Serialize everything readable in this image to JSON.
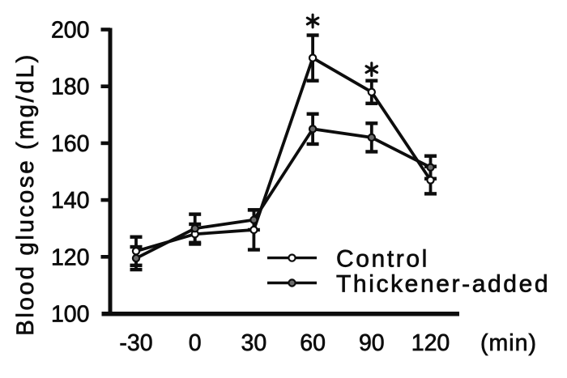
{
  "chart_data": {
    "type": "line",
    "title": "",
    "ylabel": "Blood glucose (mg/dL)",
    "xlabel": "(min)",
    "x": [
      -30,
      0,
      30,
      60,
      90,
      120
    ],
    "xtick_labels": [
      "-30",
      "0",
      "30",
      "60",
      "90",
      "120"
    ],
    "yticks": [
      100,
      120,
      140,
      160,
      180,
      200
    ],
    "ylim": [
      100,
      200
    ],
    "grid": false,
    "legend_position": "inside-right",
    "series": [
      {
        "name": "Control",
        "marker": "open-circle",
        "marker_fill": "#ffffff",
        "line_color": "#0d0d0d",
        "values": [
          122,
          128,
          129.5,
          190,
          178,
          147
        ],
        "errors": [
          5,
          3.5,
          7,
          8,
          4,
          4.8
        ]
      },
      {
        "name": "Thickener-added",
        "marker": "filled-circle",
        "marker_fill": "#6b6b6b",
        "line_color": "#0d0d0d",
        "values": [
          119.5,
          130,
          133,
          165,
          162,
          151.5
        ],
        "errors": [
          4,
          5,
          3.5,
          5.3,
          5,
          4
        ]
      }
    ],
    "annotations": [
      {
        "symbol": "*",
        "x": 60,
        "y": 203,
        "meaning": "significance-marker"
      },
      {
        "symbol": "*",
        "x": 90,
        "y": 186,
        "meaning": "significance-marker"
      }
    ],
    "colors": {
      "axis": "#0d0d0d",
      "text": "#0d0d0d",
      "background": "#ffffff"
    }
  }
}
